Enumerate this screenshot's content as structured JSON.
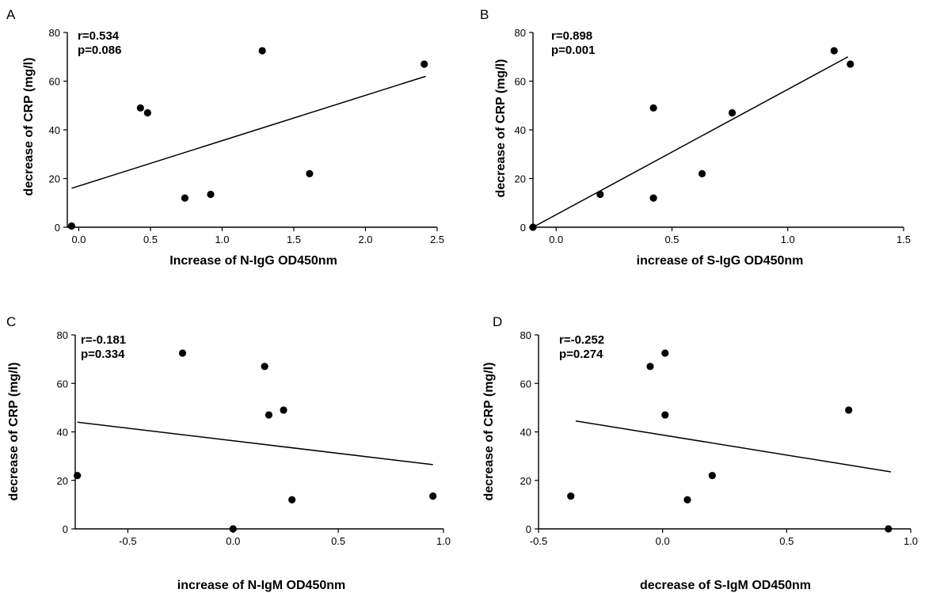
{
  "chart_data": [
    {
      "panel": "A",
      "type": "scatter",
      "xlabel": "Increase of N-IgG OD450nm",
      "ylabel": "decrease of CRP (mg/l)",
      "annotations": [
        "r=0.534",
        "p=0.086"
      ],
      "xlim": [
        -0.08,
        2.5
      ],
      "ylim": [
        0,
        80
      ],
      "xticks": [
        0.0,
        0.5,
        1.0,
        1.5,
        2.0,
        2.5
      ],
      "xtick_labels": [
        "0.0",
        "0.5",
        "1.0",
        "1.5",
        "2.0",
        "2.5"
      ],
      "yticks": [
        0,
        20,
        40,
        60,
        80
      ],
      "ytick_labels": [
        "0",
        "20",
        "40",
        "60",
        "80"
      ],
      "points": [
        {
          "x": -0.05,
          "y": 0.5
        },
        {
          "x": 0.43,
          "y": 49
        },
        {
          "x": 0.48,
          "y": 47
        },
        {
          "x": 0.74,
          "y": 12
        },
        {
          "x": 0.92,
          "y": 13.5
        },
        {
          "x": 1.28,
          "y": 72.5
        },
        {
          "x": 1.61,
          "y": 22
        },
        {
          "x": 2.41,
          "y": 67
        }
      ],
      "fit_line": [
        {
          "x": -0.05,
          "y": 16
        },
        {
          "x": 2.42,
          "y": 62
        }
      ]
    },
    {
      "panel": "B",
      "type": "scatter",
      "xlabel": "increase of S-IgG OD450nm",
      "ylabel": "decrease of CRP (mg/l)",
      "annotations": [
        "r=0.898",
        "p=0.001"
      ],
      "xlim": [
        -0.1,
        1.5
      ],
      "ylim": [
        0,
        80
      ],
      "xticks": [
        0.0,
        0.5,
        1.0,
        1.5
      ],
      "xtick_labels": [
        "0.0",
        "0.5",
        "1.0",
        "1.5"
      ],
      "yticks": [
        0,
        20,
        40,
        60,
        80
      ],
      "ytick_labels": [
        "0",
        "20",
        "40",
        "60",
        "80"
      ],
      "points": [
        {
          "x": -0.1,
          "y": 0
        },
        {
          "x": 0.19,
          "y": 13.5
        },
        {
          "x": 0.42,
          "y": 49
        },
        {
          "x": 0.42,
          "y": 12
        },
        {
          "x": 0.63,
          "y": 22
        },
        {
          "x": 0.76,
          "y": 47
        },
        {
          "x": 1.2,
          "y": 72.5
        },
        {
          "x": 1.27,
          "y": 67
        }
      ],
      "fit_line": [
        {
          "x": -0.1,
          "y": 0
        },
        {
          "x": 1.26,
          "y": 70
        }
      ]
    },
    {
      "panel": "C",
      "type": "scatter",
      "xlabel": "increase of N-IgM OD450nm",
      "ylabel": "decrease of CRP (mg/l)",
      "annotations": [
        "r=-0.181",
        "p=0.334"
      ],
      "xlim": [
        -0.75,
        1.0
      ],
      "ylim": [
        0,
        80
      ],
      "xticks": [
        -0.5,
        0.0,
        0.5,
        1.0
      ],
      "xtick_labels": [
        "-0.5",
        "0.0",
        "0.5",
        "1.0"
      ],
      "yticks": [
        0,
        20,
        40,
        60,
        80
      ],
      "ytick_labels": [
        "0",
        "20",
        "40",
        "60",
        "80"
      ],
      "points": [
        {
          "x": -0.74,
          "y": 22
        },
        {
          "x": -0.24,
          "y": 72.5
        },
        {
          "x": 0.0,
          "y": 0
        },
        {
          "x": 0.15,
          "y": 67
        },
        {
          "x": 0.17,
          "y": 47
        },
        {
          "x": 0.24,
          "y": 49
        },
        {
          "x": 0.28,
          "y": 12
        },
        {
          "x": 0.95,
          "y": 13.5
        }
      ],
      "fit_line": [
        {
          "x": -0.74,
          "y": 44
        },
        {
          "x": 0.95,
          "y": 26.5
        }
      ]
    },
    {
      "panel": "D",
      "type": "scatter",
      "xlabel": "decrease of S-IgM OD450nm",
      "ylabel": "decrease of CRP (mg/l)",
      "annotations": [
        "r=-0.252",
        "p=0.274"
      ],
      "xlim": [
        -0.5,
        1.0
      ],
      "ylim": [
        0,
        80
      ],
      "xticks": [
        -0.5,
        0.0,
        0.5,
        1.0
      ],
      "xtick_labels": [
        "-0.5",
        "0.0",
        "0.5",
        "1.0"
      ],
      "yticks": [
        0,
        20,
        40,
        60,
        80
      ],
      "ytick_labels": [
        "0",
        "20",
        "40",
        "60",
        "80"
      ],
      "points": [
        {
          "x": -0.37,
          "y": 13.5
        },
        {
          "x": -0.05,
          "y": 67
        },
        {
          "x": 0.01,
          "y": 72.5
        },
        {
          "x": 0.01,
          "y": 47
        },
        {
          "x": 0.1,
          "y": 12
        },
        {
          "x": 0.2,
          "y": 22
        },
        {
          "x": 0.75,
          "y": 49
        },
        {
          "x": 0.91,
          "y": 0
        }
      ],
      "fit_line": [
        {
          "x": -0.35,
          "y": 44.5
        },
        {
          "x": 0.92,
          "y": 23.5
        }
      ]
    }
  ]
}
